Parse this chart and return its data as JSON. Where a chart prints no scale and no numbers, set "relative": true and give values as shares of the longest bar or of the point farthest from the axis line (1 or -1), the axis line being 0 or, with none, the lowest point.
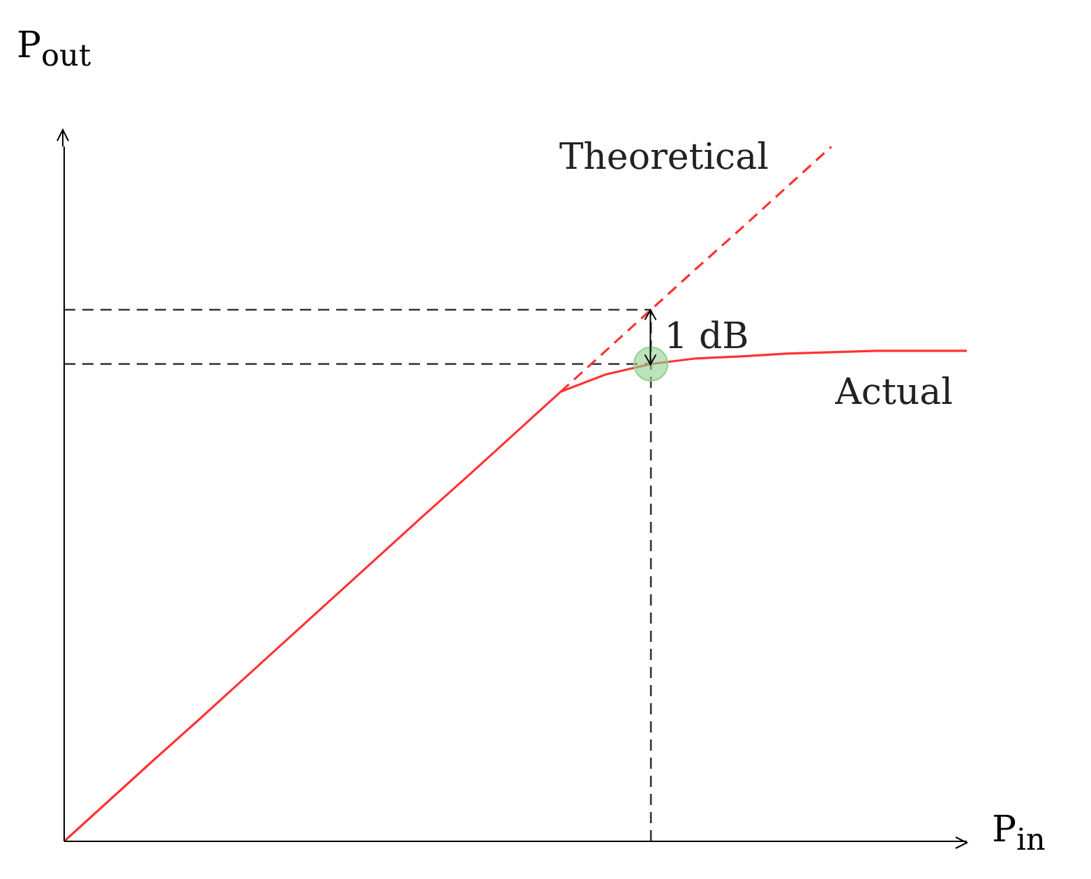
{
  "chart_data": {
    "type": "line",
    "relative": true,
    "xlabel": "P$_{in}$",
    "ylabel": "P$_{out}$",
    "legend": false,
    "grid": false,
    "categories": [
      null,
      null,
      null,
      null,
      null,
      null,
      null,
      null,
      null,
      null,
      null,
      null,
      null,
      null,
      null,
      null,
      null,
      null,
      null,
      null,
      null
    ],
    "series": [
      {
        "name": "Actual",
        "type": "line",
        "color": "#ff3333",
        "line_style": "solid",
        "values": [
          0,
          0.059,
          0.118,
          0.176,
          0.235,
          0.294,
          0.353,
          0.412,
          0.471,
          0.529,
          0.588,
          0.647,
          0.672,
          0.687,
          0.695,
          0.698,
          0.702,
          0.704,
          0.706,
          0.706,
          0.706
        ]
      },
      {
        "name": "Theoretical",
        "type": "line",
        "color": "#ff3333",
        "line_style": "dashed",
        "values": [
          null,
          null,
          null,
          null,
          null,
          null,
          null,
          null,
          null,
          null,
          null,
          0.647,
          0.706,
          0.765,
          0.824,
          0.882,
          0.941,
          1.0,
          null,
          null,
          null
        ]
      },
      {
        "type": "line",
        "marker": "circle",
        "color": "#8fd18f",
        "values": [
          null,
          null,
          null,
          null,
          null,
          null,
          null,
          null,
          null,
          null,
          null,
          null,
          null,
          0.687,
          null,
          null,
          null,
          null,
          null,
          null,
          null
        ]
      }
    ],
    "ref_lines": [
      {
        "axis": "y",
        "value": 0.765,
        "color": "#333333",
        "line_style": "dashed"
      },
      {
        "axis": "y",
        "value": 0.687,
        "color": "#333333",
        "line_style": "dashed"
      }
    ],
    "annotations": [
      "1 dB"
    ]
  }
}
